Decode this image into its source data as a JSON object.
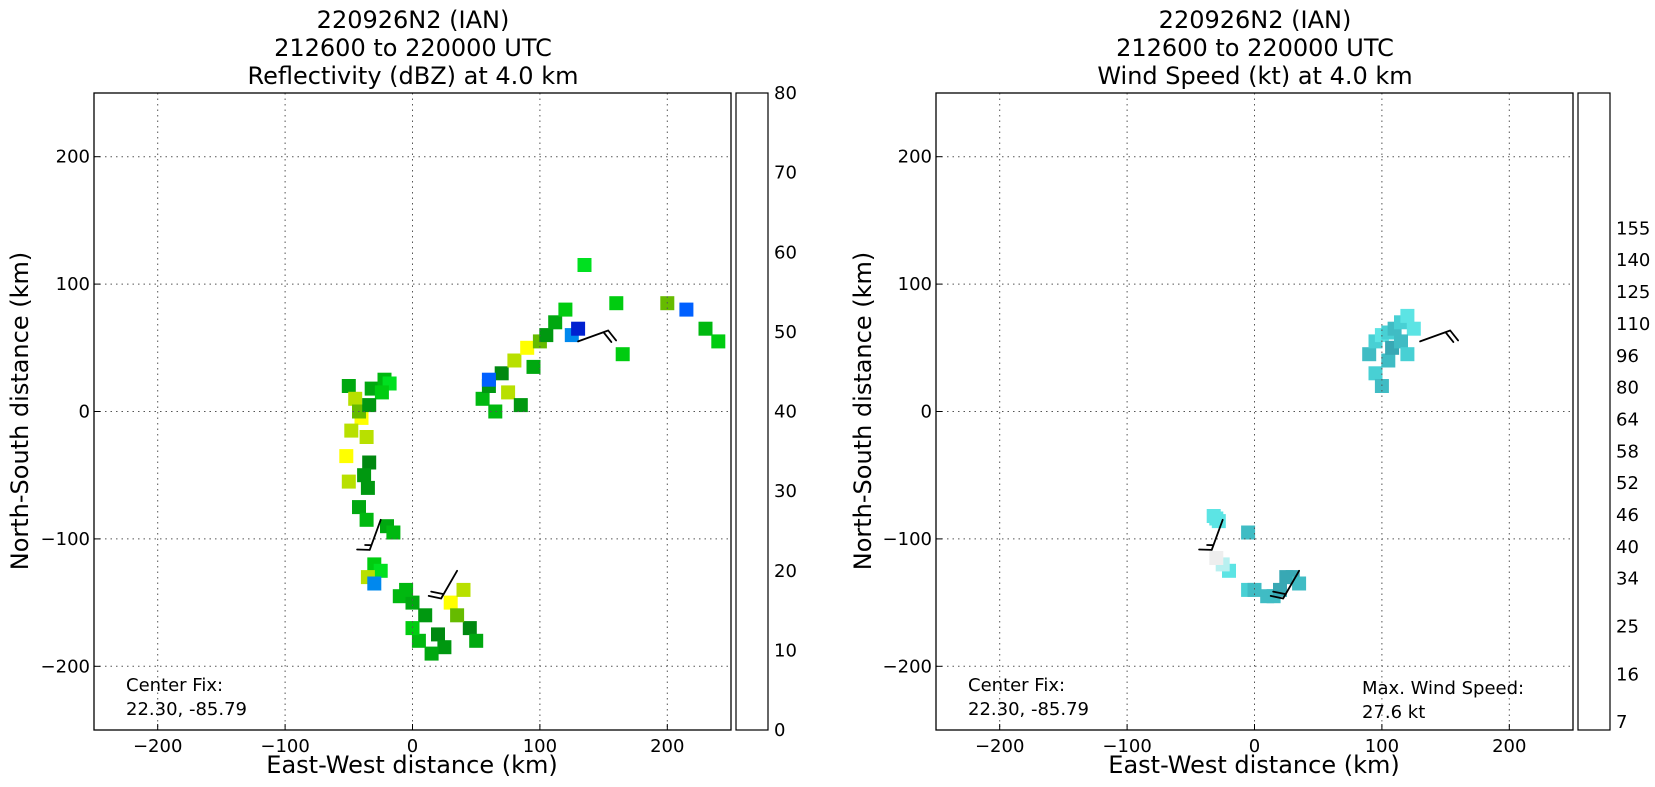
{
  "chart_data": [
    {
      "type": "heatmap",
      "title": [
        "220926N2 (IAN)",
        "212600 to 220000 UTC",
        "Reflectivity (dBZ) at 4.0 km"
      ],
      "xlabel": "East-West distance (km)",
      "ylabel": "North-South distance (km)",
      "xlim": [
        -250,
        250
      ],
      "ylim": [
        -250,
        250
      ],
      "xticks": [
        -200,
        -100,
        0,
        100,
        200
      ],
      "yticks": [
        -200,
        -100,
        0,
        100,
        200
      ],
      "xtick_labels": [
        "−200",
        "−100",
        "0",
        "100",
        "200"
      ],
      "ytick_labels": [
        "−200",
        "−100",
        "0",
        "100",
        "200"
      ],
      "grid": true,
      "annotation": [
        "Center Fix:",
        "22.30, -85.79"
      ],
      "colorbar": {
        "min": 0,
        "max": 80,
        "tick_values": [
          0,
          10,
          20,
          30,
          40,
          50,
          60,
          70,
          80
        ],
        "tick_labels": [
          "0",
          "10",
          "20",
          "30",
          "40",
          "50",
          "60",
          "70",
          "80"
        ],
        "colors": [
          "#00f0f0",
          "#00d6ea",
          "#00bcea",
          "#00a2ea",
          "#0088ee",
          "#0060ff",
          "#0038f0",
          "#0020d0",
          "#00808a",
          "#00e040",
          "#00e020",
          "#00cc10",
          "#00b810",
          "#00a810",
          "#009810",
          "#008810",
          "#66bb00",
          "#b8e000",
          "#ffff00",
          "#f5e300",
          "#eec800",
          "#eeae00",
          "#f29000",
          "#ff7a00",
          "#ff5000",
          "#ff2800",
          "#ff0000",
          "#ee0000",
          "#d80000",
          "#c80000",
          "#c80030",
          "#e00090",
          "#f000d0",
          "#e040f0",
          "#c050e0",
          "#a050d0",
          "#7a48b0",
          "#503070",
          "#000000"
        ]
      },
      "features": [
        {
          "x": [
            -50,
            -45,
            -40,
            -36,
            -34,
            -35,
            -42,
            -50,
            -52,
            -48,
            -42,
            -32,
            -22,
            -18,
            -24,
            -34,
            -38,
            -36
          ],
          "y": [
            20,
            10,
            -5,
            -20,
            -40,
            -60,
            -75,
            -55,
            -35,
            -15,
            0,
            18,
            25,
            22,
            15,
            5,
            -50,
            -85
          ],
          "z": [
            28,
            36,
            38,
            36,
            32,
            30,
            28,
            35,
            38,
            36,
            34,
            28,
            25,
            22,
            24,
            30,
            30,
            26
          ]
        },
        {
          "x": [
            55,
            60,
            70,
            80,
            90,
            100,
            105,
            112,
            120,
            125,
            130,
            75,
            85,
            95,
            65,
            60
          ],
          "y": [
            10,
            20,
            30,
            40,
            50,
            55,
            60,
            70,
            80,
            60,
            65,
            15,
            5,
            35,
            0,
            25
          ],
          "z": [
            25,
            30,
            32,
            36,
            38,
            34,
            30,
            28,
            24,
            10,
            15,
            36,
            30,
            28,
            26,
            12
          ]
        },
        {
          "x": [
            -10,
            0,
            10,
            20,
            30,
            40,
            45,
            50,
            25,
            15,
            5,
            0,
            35
          ],
          "y": [
            -145,
            -150,
            -160,
            -175,
            -150,
            -140,
            -170,
            -180,
            -185,
            -190,
            -180,
            -170,
            -160
          ],
          "z": [
            26,
            28,
            30,
            32,
            38,
            36,
            32,
            28,
            30,
            28,
            26,
            24,
            34
          ]
        },
        {
          "x": [
            -20,
            -15,
            -30,
            -25,
            -35,
            -30,
            -5,
            165,
            200,
            215,
            230,
            240,
            135,
            160
          ],
          "y": [
            -90,
            -95,
            -120,
            -125,
            -130,
            -135,
            -140,
            45,
            85,
            80,
            65,
            55,
            115,
            85
          ],
          "z": [
            28,
            26,
            24,
            22,
            36,
            10,
            26,
            24,
            34,
            12,
            26,
            24,
            22,
            24
          ]
        }
      ],
      "wind_barbs": [
        {
          "x": 130,
          "y": 55,
          "speed_kt": 20,
          "from_deg": 70
        },
        {
          "x": -25,
          "y": -85,
          "speed_kt": 15,
          "from_deg": 200
        },
        {
          "x": 35,
          "y": -125,
          "speed_kt": 20,
          "from_deg": 210
        }
      ]
    },
    {
      "type": "heatmap",
      "title": [
        "220926N2 (IAN)",
        "212600 to 220000 UTC",
        "Wind Speed (kt) at 4.0 km"
      ],
      "xlabel": "East-West distance (km)",
      "ylabel": "North-South distance (km)",
      "xlim": [
        -250,
        250
      ],
      "ylim": [
        -250,
        250
      ],
      "xticks": [
        -200,
        -100,
        0,
        100,
        200
      ],
      "yticks": [
        -200,
        -100,
        0,
        100,
        200
      ],
      "xtick_labels": [
        "−200",
        "−100",
        "0",
        "100",
        "200"
      ],
      "ytick_labels": [
        "−200",
        "−100",
        "0",
        "100",
        "200"
      ],
      "grid": true,
      "annotation": [
        "Center Fix:",
        "22.30, -85.79"
      ],
      "annotation_right": [
        "Max. Wind Speed:",
        "27.6 kt"
      ],
      "colorbar": {
        "tick_labels": [
          "7",
          "16",
          "25",
          "34",
          "40",
          "46",
          "52",
          "58",
          "64",
          "80",
          "96",
          "110",
          "125",
          "140",
          "155"
        ],
        "tick_indices": [
          0,
          3,
          6,
          9,
          11,
          13,
          15,
          17,
          19,
          21,
          23,
          25,
          27,
          29,
          31
        ],
        "colors": [
          "#eeeeee",
          "#b8f0f0",
          "#80eeee",
          "#5ce4e4",
          "#48d0d4",
          "#40bcc4",
          "#38a8b4",
          "#3098a4",
          "#288890",
          "#1a9c50",
          "#20b030",
          "#38c038",
          "#80d050",
          "#c8e060",
          "#eee070",
          "#ffd060",
          "#ff8040",
          "#ff5030",
          "#ff2020",
          "#e00000",
          "#c00000",
          "#a00000",
          "#780000",
          "#801040",
          "#a020b0",
          "#c040e0",
          "#d060f0",
          "#e080f0",
          "#e0a0f0",
          "#f0c0f0",
          "#f8c8e8",
          "#f8b0d0",
          "#ff98b0",
          "#ff88a0",
          "#ff7890",
          "#f86070",
          "#f05060",
          "#e04050",
          "#c03050",
          "#a01840"
        ]
      },
      "features": [
        {
          "x": [
            90,
            95,
            100,
            105,
            110,
            115,
            120,
            125,
            95,
            100,
            105,
            108,
            115,
            120
          ],
          "y": [
            45,
            55,
            60,
            62,
            65,
            70,
            75,
            65,
            30,
            20,
            40,
            50,
            55,
            45
          ],
          "z": [
            22,
            20,
            18,
            20,
            22,
            20,
            18,
            16,
            20,
            22,
            24,
            26,
            22,
            20
          ]
        },
        {
          "x": [
            -5,
            0,
            10,
            15,
            20,
            25,
            30,
            35,
            -20,
            -25,
            -30,
            -5
          ],
          "y": [
            -140,
            -140,
            -145,
            -145,
            -140,
            -130,
            -130,
            -135,
            -125,
            -120,
            -115,
            -95
          ],
          "z": [
            20,
            22,
            22,
            24,
            26,
            27,
            26,
            24,
            16,
            10,
            9,
            22
          ]
        },
        {
          "x": [
            -32,
            -30,
            -28
          ],
          "y": [
            -82,
            -84,
            -86
          ],
          "z": [
            16,
            18,
            16
          ]
        }
      ],
      "wind_barbs": [
        {
          "x": 130,
          "y": 55,
          "speed_kt": 20,
          "from_deg": 70
        },
        {
          "x": -25,
          "y": -85,
          "speed_kt": 15,
          "from_deg": 200
        },
        {
          "x": 35,
          "y": -125,
          "speed_kt": 20,
          "from_deg": 210
        }
      ]
    }
  ]
}
